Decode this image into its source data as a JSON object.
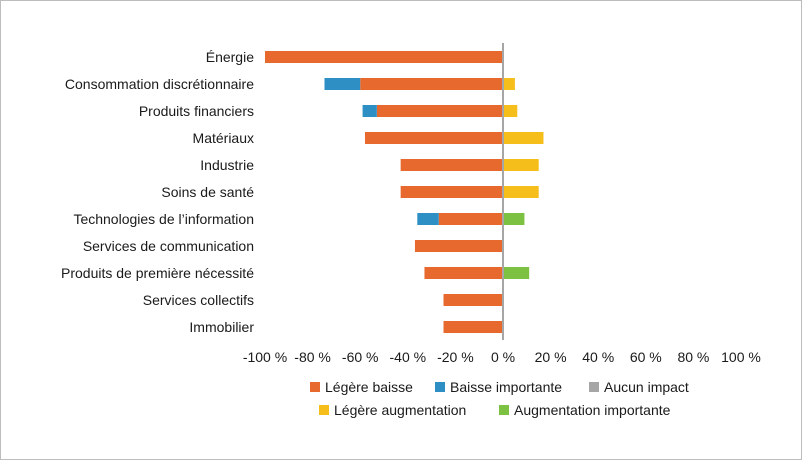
{
  "chart_data": {
    "type": "bar",
    "orientation": "horizontal",
    "stacked": true,
    "categories": [
      "Énergie",
      "Consommation discrétionnaire",
      "Produits financiers",
      "Matériaux",
      "Industrie",
      "Soins de santé",
      "Technologies de l’information",
      "Services de communication",
      "Produits de première nécessité",
      "Services collectifs",
      "Immobilier"
    ],
    "series": [
      {
        "name": "Légère baisse",
        "color": "#E8692D",
        "values": [
          -100,
          -60,
          -53,
          -58,
          -43,
          -43,
          -27,
          -37,
          -33,
          -25,
          -25
        ]
      },
      {
        "name": "Baisse importante",
        "color": "#2E8FC4",
        "values": [
          0,
          -15,
          -6,
          0,
          0,
          0,
          -9,
          0,
          0,
          0,
          0
        ]
      },
      {
        "name": "Aucun impact",
        "color": "#A6A6A6",
        "values": [
          0,
          0,
          0,
          0,
          0,
          0,
          0,
          0,
          0,
          0,
          0
        ]
      },
      {
        "name": "Légère augmentation",
        "color": "#F5BE1A",
        "values": [
          0,
          5,
          6,
          17,
          15,
          15,
          0,
          0,
          0,
          0,
          0
        ]
      },
      {
        "name": "Augmentation importante",
        "color": "#7DC142",
        "values": [
          0,
          0,
          0,
          0,
          0,
          0,
          9,
          0,
          11,
          0,
          0
        ]
      }
    ],
    "xlim": [
      -100,
      100
    ],
    "xticks": [
      -100,
      -80,
      -60,
      -40,
      -20,
      0,
      20,
      40,
      60,
      80,
      100
    ],
    "tick_labels": [
      "-100 %",
      "-80 %",
      "-60 %",
      "-40 %",
      "-20 %",
      "0 %",
      "20 %",
      "40 %",
      "60 %",
      "80 %",
      "100 %"
    ],
    "zero_line_color": "#A6A6A6",
    "grid": false,
    "legend_position": "bottom",
    "title": "",
    "xlabel": "",
    "ylabel": ""
  }
}
